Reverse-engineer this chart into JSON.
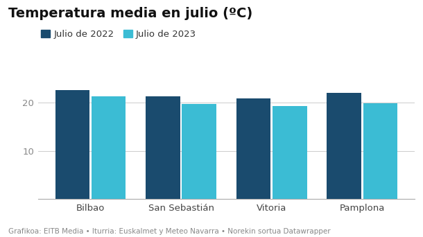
{
  "title": "Temperatura media en julio (ºC)",
  "categories": [
    "Bilbao",
    "San Sebastián",
    "Vitoria",
    "Pamplona"
  ],
  "values_2022": [
    22.5,
    21.2,
    20.8,
    21.9
  ],
  "values_2023": [
    21.3,
    19.7,
    19.2,
    19.8
  ],
  "color_2022": "#1a4b6e",
  "color_2023": "#3bbcd4",
  "legend_2022": "Julio de 2022",
  "legend_2023": "Julio de 2023",
  "ylabel_ticks": [
    10,
    20
  ],
  "ylim": [
    0,
    25
  ],
  "footnote": "Grafikoa: EITB Media • Iturria: Euskalmet y Meteo Navarra • Norekin sortua Datawrapper",
  "background_color": "#ffffff",
  "title_fontsize": 14,
  "legend_fontsize": 9.5,
  "tick_fontsize": 9.5,
  "footnote_fontsize": 7.5
}
